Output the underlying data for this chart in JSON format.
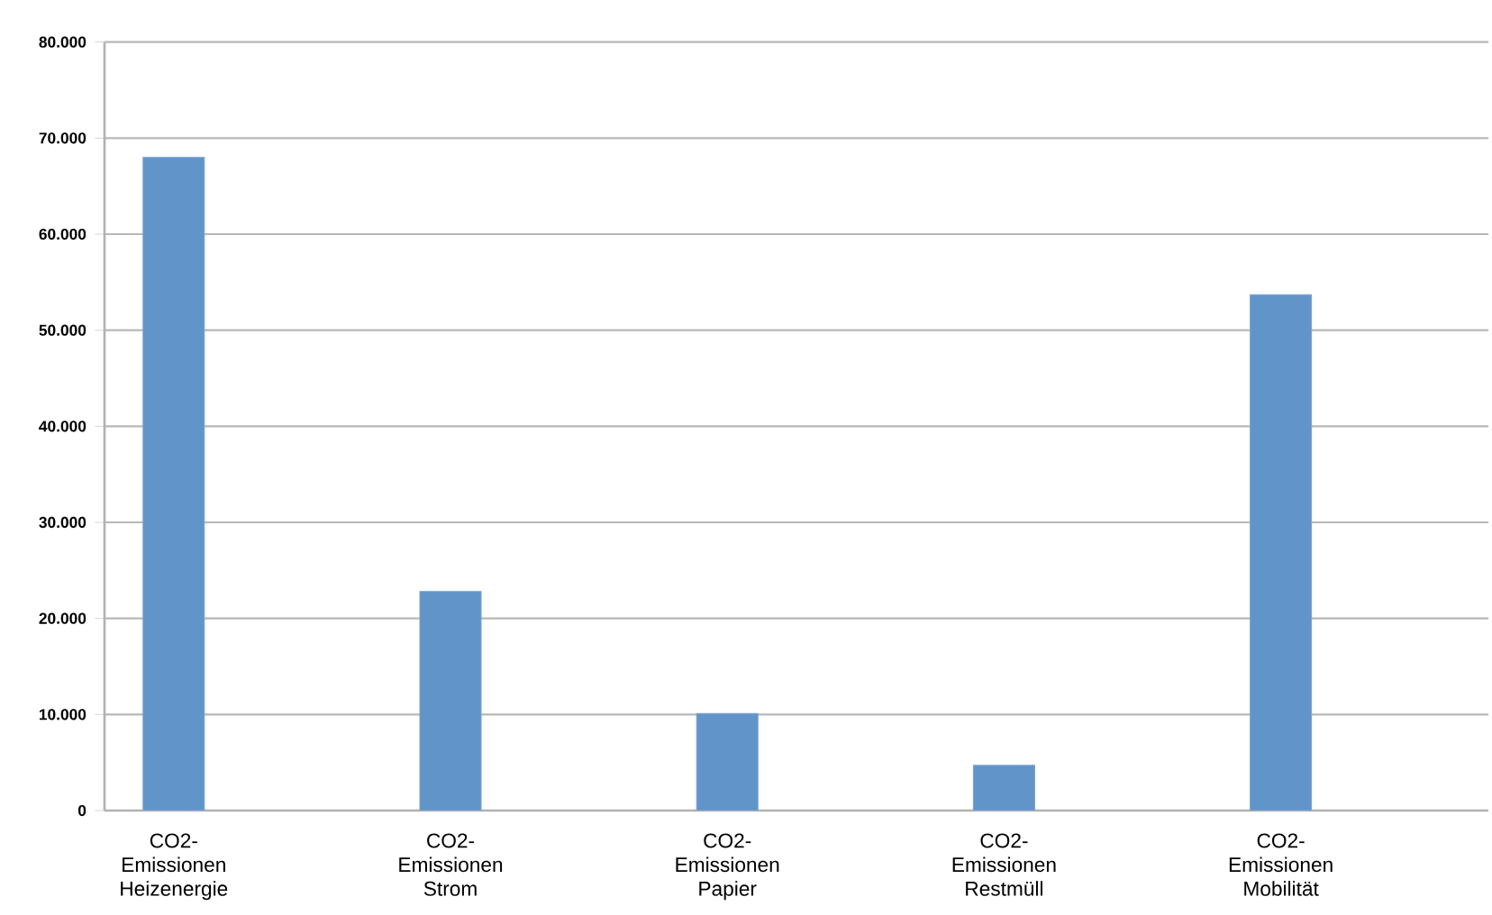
{
  "chart_data": {
    "type": "bar",
    "categories": [
      "CO2-Emissionen Heizenergie",
      null,
      "CO2-Emissionen Strom",
      null,
      "CO2-Emissionen Papier",
      null,
      "CO2-Emissionen Restmüll",
      null,
      "CO2-Emissionen Mobilität",
      null
    ],
    "values": [
      68000,
      null,
      22800,
      null,
      10100,
      null,
      4700,
      null,
      53700,
      null
    ],
    "color": "#6194c8",
    "ylim": [
      0,
      80000
    ],
    "yticks": [
      0,
      {
        "value": 10000,
        "label": "10.000"
      },
      {
        "value": 20000,
        "label": "20.000"
      },
      {
        "value": 30000,
        "label": "30.000"
      },
      {
        "value": 40000,
        "label": "40.000"
      },
      {
        "value": 50000,
        "label": "50.000"
      },
      {
        "value": 60000,
        "label": "60.000"
      },
      {
        "value": 70000,
        "label": "70.000"
      },
      {
        "value": 80000,
        "label": "80.000"
      }
    ],
    "grid": "y"
  }
}
